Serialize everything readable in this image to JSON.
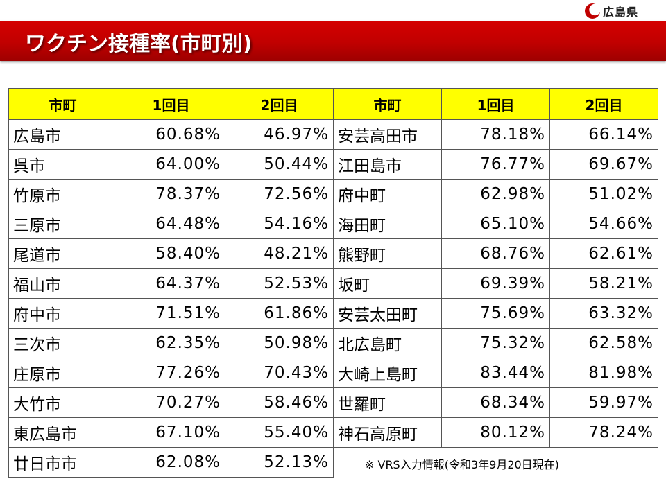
{
  "header": {
    "title": "ワクチン接種率(市町別)",
    "logo_text": "広島県",
    "brand_color": "#c00000"
  },
  "table": {
    "headers": [
      "市町",
      "1回目",
      "2回目",
      "市町",
      "1回目",
      "2回目"
    ],
    "rows": [
      [
        "広島市",
        "60.68%",
        "46.97%",
        "安芸高田市",
        "78.18%",
        "66.14%"
      ],
      [
        "呉市",
        "64.00%",
        "50.44%",
        "江田島市",
        "76.77%",
        "69.67%"
      ],
      [
        "竹原市",
        "78.37%",
        "72.56%",
        "府中町",
        "62.98%",
        "51.02%"
      ],
      [
        "三原市",
        "64.48%",
        "54.16%",
        "海田町",
        "65.10%",
        "54.66%"
      ],
      [
        "尾道市",
        "58.40%",
        "48.21%",
        "熊野町",
        "68.76%",
        "62.61%"
      ],
      [
        "福山市",
        "64.37%",
        "52.53%",
        "坂町",
        "69.39%",
        "58.21%"
      ],
      [
        "府中市",
        "71.51%",
        "61.86%",
        "安芸太田町",
        "75.69%",
        "63.32%"
      ],
      [
        "三次市",
        "62.35%",
        "50.98%",
        "北広島町",
        "75.32%",
        "62.58%"
      ],
      [
        "庄原市",
        "77.26%",
        "70.43%",
        "大崎上島町",
        "83.44%",
        "81.98%"
      ],
      [
        "大竹市",
        "70.27%",
        "58.46%",
        "世羅町",
        "68.34%",
        "59.97%"
      ],
      [
        "東広島市",
        "67.10%",
        "55.40%",
        "神石高原町",
        "80.12%",
        "78.24%"
      ],
      [
        "廿日市市",
        "62.08%",
        "52.13%"
      ]
    ]
  },
  "note": "※ VRS入力情報(令和3年9月20日現在)"
}
